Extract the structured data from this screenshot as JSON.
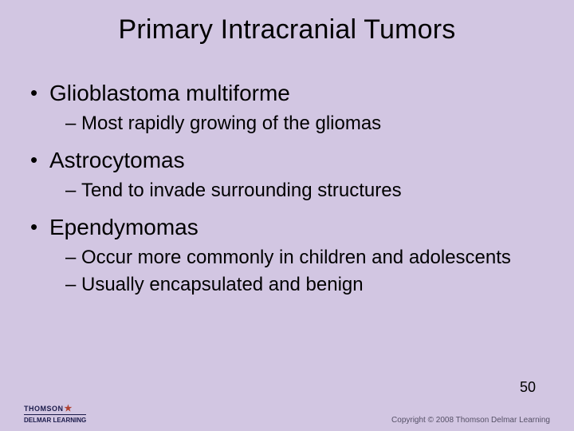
{
  "background_color": "#d2c6e2",
  "text_color": "#000000",
  "title": "Primary Intracranial Tumors",
  "title_fontsize": 34,
  "bullets": [
    {
      "text": "Glioblastoma multiforme",
      "sub": [
        "Most rapidly growing of the gliomas"
      ]
    },
    {
      "text": "Astrocytomas",
      "sub": [
        "Tend to invade surrounding structures"
      ]
    },
    {
      "text": "Ependymomas",
      "sub": [
        "Occur more commonly in children and adolescents",
        "Usually encapsulated and benign"
      ]
    }
  ],
  "l1_fontsize": 28,
  "l2_fontsize": 24,
  "page_number": "50",
  "footer": {
    "brand_top": "THOMSON",
    "brand_bottom": "DELMAR LEARNING",
    "copyright": "Copyright © 2008 Thomson Delmar Learning"
  }
}
